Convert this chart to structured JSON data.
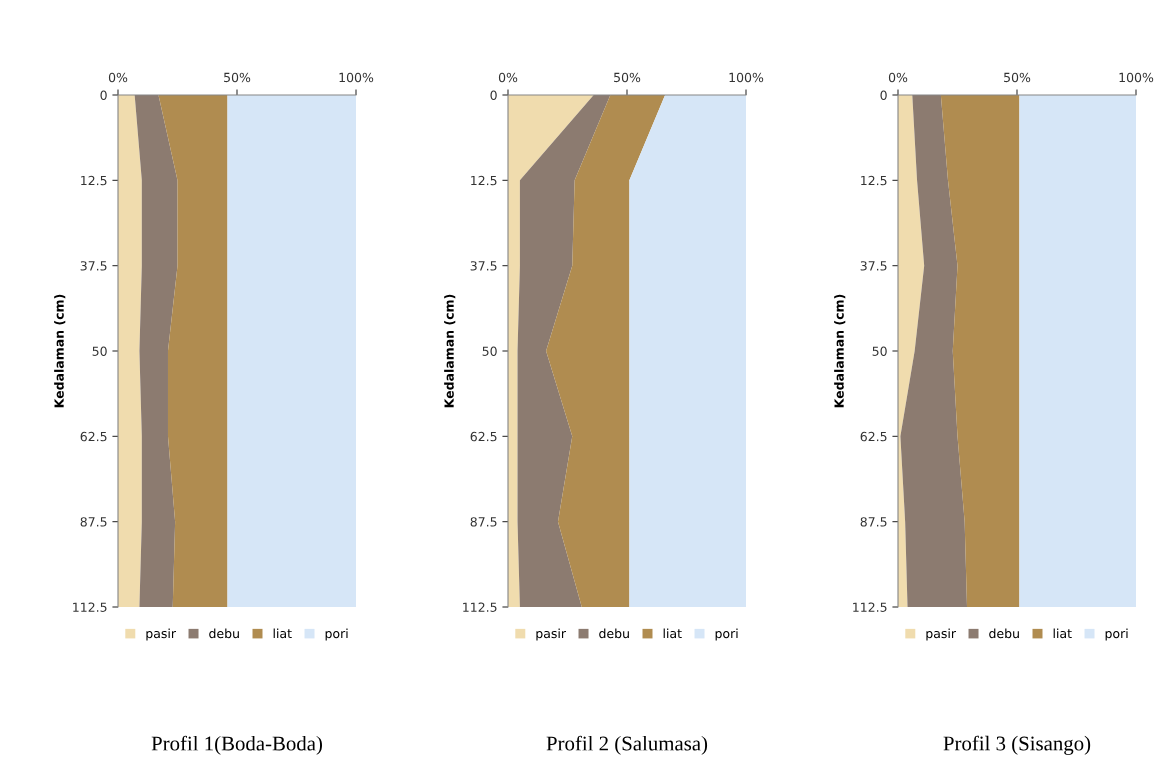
{
  "chart_data": [
    {
      "type": "area",
      "orientation": "horizontal",
      "stacked": true,
      "title": "Profil 1(Boda-Boda)",
      "ylabel": "Kedalaman (cm)",
      "categories": [
        "0",
        "12.5",
        "37.5",
        "50",
        "62.5",
        "87.5",
        "112.5"
      ],
      "series": [
        {
          "name": "pasir",
          "color": "#f0dcae",
          "values": [
            7,
            10,
            10,
            9,
            10,
            10,
            9
          ]
        },
        {
          "name": "debu",
          "color": "#8c7b70",
          "values": [
            10,
            15,
            15,
            12,
            11,
            14,
            14
          ]
        },
        {
          "name": "liat",
          "color": "#b08c50",
          "values": [
            29,
            21,
            21,
            25,
            25,
            22,
            23
          ]
        },
        {
          "name": "pori",
          "color": "#d6e6f7",
          "values": [
            54,
            54,
            54,
            54,
            54,
            54,
            54
          ]
        }
      ],
      "xlim": [
        0,
        100
      ],
      "xticks": [
        {
          "value": 0,
          "label": "0%"
        },
        {
          "value": 50,
          "label": "50%"
        },
        {
          "value": 100,
          "label": "100%"
        }
      ],
      "grid": false,
      "legend": "bottom"
    },
    {
      "type": "area",
      "orientation": "horizontal",
      "stacked": true,
      "title": "Profil 2 (Salumasa)",
      "ylabel": "Kedalaman (cm)",
      "categories": [
        "0",
        "12.5",
        "37.5",
        "50",
        "62.5",
        "87.5",
        "112.5"
      ],
      "series": [
        {
          "name": "pasir",
          "color": "#f0dcae",
          "values": [
            36,
            5,
            5,
            4,
            4,
            4,
            5
          ]
        },
        {
          "name": "debu",
          "color": "#8c7b70",
          "values": [
            7,
            23,
            22,
            12,
            23,
            17,
            26
          ]
        },
        {
          "name": "liat",
          "color": "#b08c50",
          "values": [
            23,
            23,
            24,
            35,
            24,
            30,
            20
          ]
        },
        {
          "name": "pori",
          "color": "#d6e6f7",
          "values": [
            34,
            49,
            49,
            49,
            49,
            49,
            49
          ]
        }
      ],
      "xlim": [
        0,
        100
      ],
      "xticks": [
        {
          "value": 0,
          "label": "0%"
        },
        {
          "value": 50,
          "label": "50%"
        },
        {
          "value": 100,
          "label": "100%"
        }
      ],
      "grid": false,
      "legend": "bottom"
    },
    {
      "type": "area",
      "orientation": "horizontal",
      "stacked": true,
      "title": "Profil 3 (Sisango)",
      "ylabel": "Kedalaman (cm)",
      "categories": [
        "0",
        "12.5",
        "37.5",
        "50",
        "62.5",
        "87.5",
        "112.5"
      ],
      "series": [
        {
          "name": "pasir",
          "color": "#f0dcae",
          "values": [
            6,
            8,
            11,
            7,
            1,
            3,
            4
          ]
        },
        {
          "name": "debu",
          "color": "#8c7b70",
          "values": [
            12,
            13,
            14,
            16,
            24,
            25,
            25
          ]
        },
        {
          "name": "liat",
          "color": "#b08c50",
          "values": [
            33,
            30,
            26,
            28,
            26,
            23,
            22
          ]
        },
        {
          "name": "pori",
          "color": "#d6e6f7",
          "values": [
            49,
            49,
            49,
            49,
            49,
            49,
            49
          ]
        }
      ],
      "xlim": [
        0,
        100
      ],
      "xticks": [
        {
          "value": 0,
          "label": "0%"
        },
        {
          "value": 50,
          "label": "50%"
        },
        {
          "value": 100,
          "label": "100%"
        }
      ],
      "grid": false,
      "legend": "bottom"
    }
  ]
}
